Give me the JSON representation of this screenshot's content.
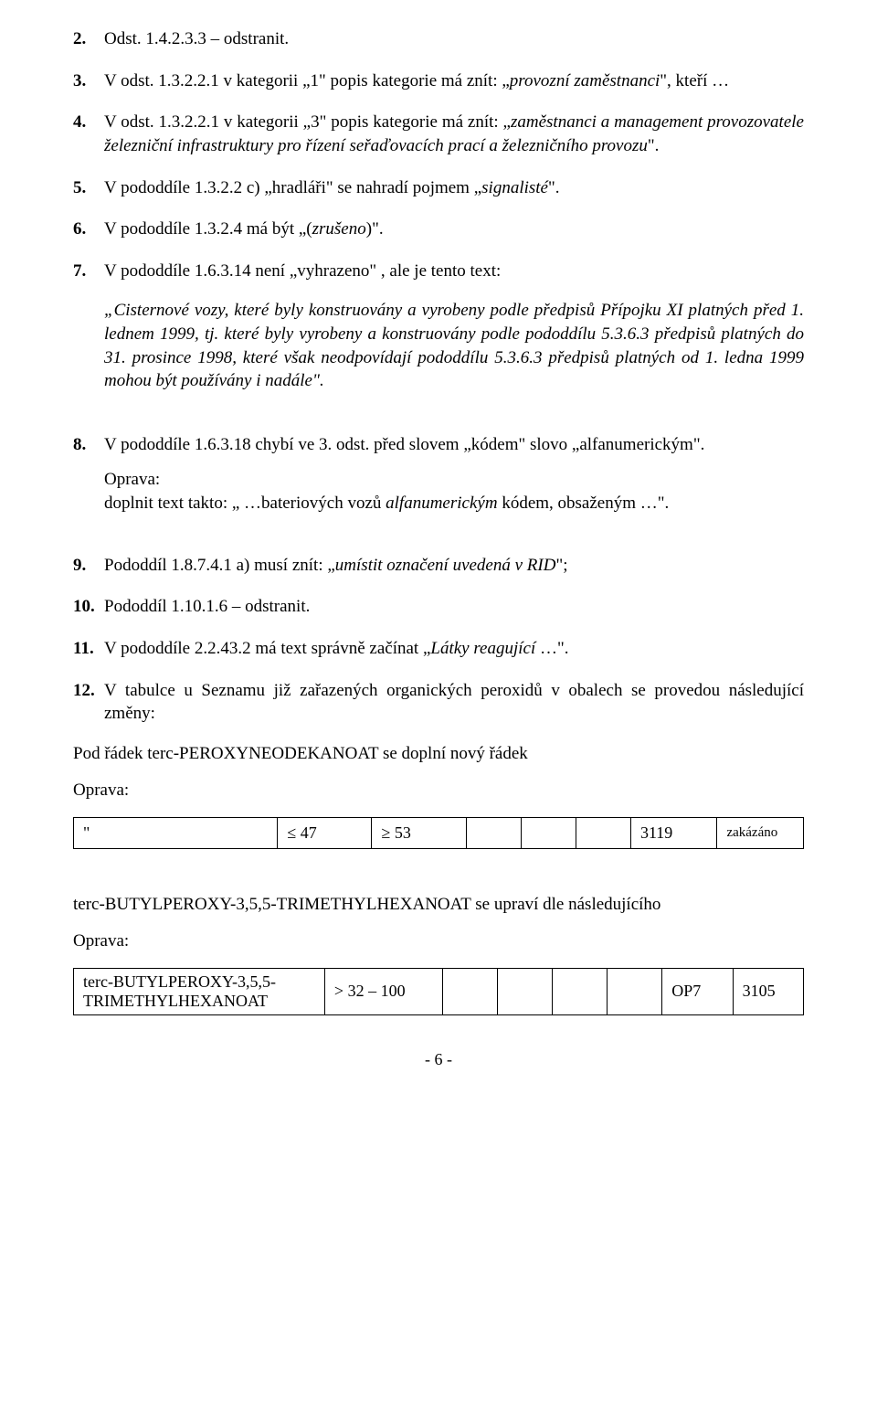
{
  "items": {
    "i2": {
      "num": "2.",
      "body": "Odst. 1.4.2.3.3 – odstranit."
    },
    "i3": {
      "num": "3.",
      "pre": "V odst. 1.3.2.2.1 v kategorii „1\" popis kategorie má znít: „",
      "ital": "provozní zaměstnanci",
      "post": "\", kteří …"
    },
    "i4": {
      "num": "4.",
      "pre": "V odst. 1.3.2.2.1 v kategorii „3\" popis kategorie má znít: „",
      "ital": "zaměstnanci a management provozovatele železniční infrastruktury pro řízení seřaďovacích prací a železničního provozu",
      "post": "\"."
    },
    "i5": {
      "num": "5.",
      "pre": "V pododdíle 1.3.2.2 c) „hradláři\" se nahradí pojmem „",
      "ital": "signalisté",
      "post": "\"."
    },
    "i6": {
      "num": "6.",
      "pre": "V pododdíle 1.3.2.4 má být „(",
      "ital": "zrušeno",
      "post": ")\"."
    },
    "i7": {
      "num": "7.",
      "lead": "V pododdíle 1.6.3.14 není „vyhrazeno\" , ale je tento text:",
      "quote": "„Cisternové vozy, které byly konstruovány a vyrobeny podle předpisů Přípojku XI platných před 1. lednem 1999, tj. které byly vyrobeny a konstruovány podle pododdílu 5.3.6.3 předpisů platných do 31. prosince 1998, které však neodpovídají pododdílu 5.3.6.3 předpisů platných od 1. ledna 1999 mohou být používány i nadále\"."
    },
    "i8": {
      "num": "8.",
      "body": "V pododdíle 1.6.3.18 chybí ve 3. odst. před slovem „kódem\" slovo „alfanumerickým\".",
      "fix_label": "Oprava:",
      "fix_pre": "doplnit text takto: „ …bateriových vozů ",
      "fix_ital": "alfanumerickým",
      "fix_post": " kódem, obsaženým …\"."
    },
    "i9": {
      "num": "9.",
      "pre": "Pododdíl 1.8.7.4.1 a) musí znít: „",
      "ital": "umístit označení uvedená v RID",
      "post": "\";"
    },
    "i10": {
      "num": "10.",
      "body": "Pododdíl 1.10.1.6 – odstranit."
    },
    "i11": {
      "num": "11.",
      "pre": "V pododdíle 2.2.43.2 má text správně začínat „",
      "ital": "Látky reagující",
      "post": " …\"."
    },
    "i12": {
      "num": "12.",
      "body": "V tabulce u Seznamu již zařazených organických peroxidů v obalech se provedou následující změny:"
    }
  },
  "para1": "Pod řádek terc-PEROXYNEODEKANOAT se doplní nový řádek",
  "oprava": "Oprava:",
  "table1": {
    "c1": "\"",
    "c2": "≤ 47",
    "c3": "≥ 53",
    "c7": "3119",
    "c8": "zakázáno"
  },
  "para2": "terc-BUTYLPEROXY-3,5,5-TRIMETHYLHEXANOAT se upraví dle následujícího",
  "table2": {
    "c1": "terc-BUTYLPEROXY-3,5,5-TRIMETHYLHEXANOAT",
    "c2": "> 32 – 100",
    "c7": "OP7",
    "c8": "3105"
  },
  "footer": "- 6 -"
}
